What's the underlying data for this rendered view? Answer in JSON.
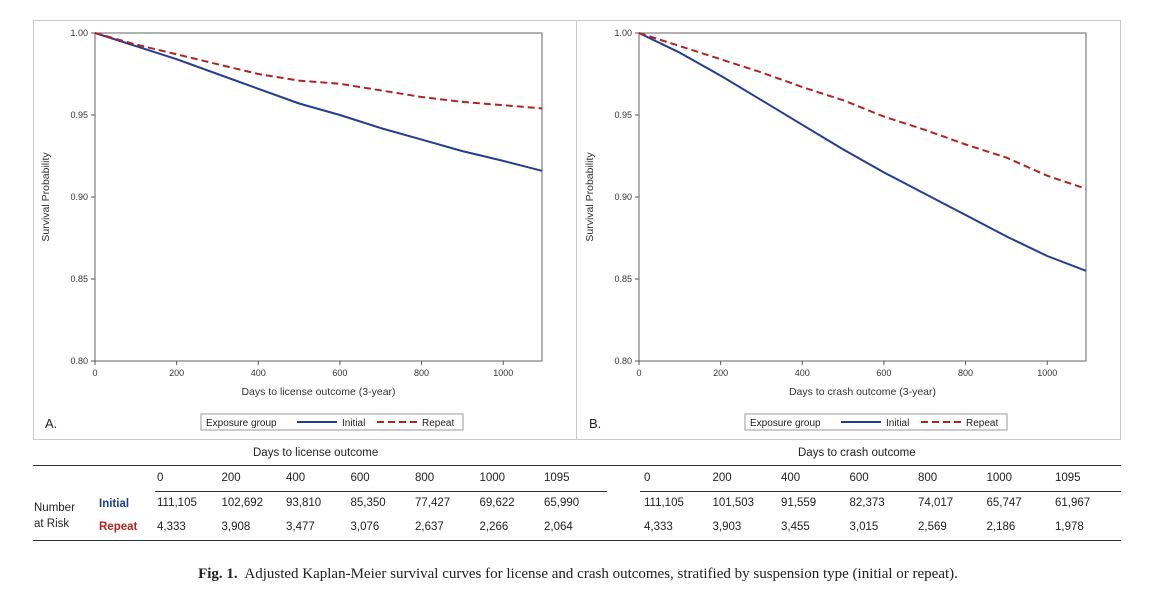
{
  "chart_data": [
    {
      "type": "line",
      "panel": "A.",
      "xlabel": "Days to license outcome (3-year)",
      "ylabel": "Survival Probability",
      "xlim": [
        0,
        1095
      ],
      "ylim": [
        0.8,
        1.0
      ],
      "x_ticks": [
        "0",
        "200",
        "400",
        "600",
        "800",
        "1000"
      ],
      "y_ticks": [
        "0.80",
        "0.85",
        "0.90",
        "0.95",
        "1.00"
      ],
      "legend_title": "Exposure group",
      "series": [
        {
          "name": "Initial",
          "style": "solid",
          "color": "#243c91",
          "x": [
            0,
            100,
            200,
            300,
            400,
            500,
            600,
            700,
            800,
            900,
            1000,
            1095
          ],
          "y": [
            1.0,
            0.992,
            0.984,
            0.975,
            0.966,
            0.957,
            0.95,
            0.942,
            0.935,
            0.928,
            0.922,
            0.916
          ]
        },
        {
          "name": "Repeat",
          "style": "dashed",
          "color": "#b22222",
          "x": [
            0,
            100,
            200,
            300,
            400,
            500,
            600,
            700,
            800,
            900,
            1000,
            1095
          ],
          "y": [
            1.0,
            0.993,
            0.987,
            0.981,
            0.975,
            0.971,
            0.969,
            0.965,
            0.961,
            0.958,
            0.956,
            0.954
          ]
        }
      ]
    },
    {
      "type": "line",
      "panel": "B.",
      "xlabel": "Days to crash outcome (3-year)",
      "ylabel": "Survival Probability",
      "xlim": [
        0,
        1095
      ],
      "ylim": [
        0.8,
        1.0
      ],
      "x_ticks": [
        "0",
        "200",
        "400",
        "600",
        "800",
        "1000"
      ],
      "y_ticks": [
        "0.80",
        "0.85",
        "0.90",
        "0.95",
        "1.00"
      ],
      "legend_title": "Exposure group",
      "series": [
        {
          "name": "Initial",
          "style": "solid",
          "color": "#243c91",
          "x": [
            0,
            100,
            200,
            300,
            400,
            500,
            600,
            700,
            800,
            900,
            1000,
            1095
          ],
          "y": [
            1.0,
            0.988,
            0.974,
            0.959,
            0.944,
            0.929,
            0.915,
            0.902,
            0.889,
            0.876,
            0.864,
            0.855
          ]
        },
        {
          "name": "Repeat",
          "style": "dashed",
          "color": "#b22222",
          "x": [
            0,
            100,
            200,
            300,
            400,
            500,
            600,
            700,
            800,
            900,
            1000,
            1095
          ],
          "y": [
            1.0,
            0.992,
            0.984,
            0.976,
            0.967,
            0.959,
            0.949,
            0.941,
            0.932,
            0.924,
            0.913,
            0.905
          ]
        }
      ]
    }
  ],
  "risk_table": {
    "row_title_1": "Number",
    "row_title_2": "at Risk",
    "initial_label": "Initial",
    "repeat_label": "Repeat",
    "license": {
      "title": "Days to license outcome",
      "days": [
        "0",
        "200",
        "400",
        "600",
        "800",
        "1000",
        "1095"
      ],
      "initial": [
        "111,105",
        "102,692",
        "93,810",
        "85,350",
        "77,427",
        "69,622",
        "65,990"
      ],
      "repeat": [
        "4,333",
        "3,908",
        "3,477",
        "3,076",
        "2,637",
        "2,266",
        "2,064"
      ]
    },
    "crash": {
      "title": "Days to crash outcome",
      "days": [
        "0",
        "200",
        "400",
        "600",
        "800",
        "1000",
        "1095"
      ],
      "initial": [
        "111,105",
        "101,503",
        "91,559",
        "82,373",
        "74,017",
        "65,747",
        "61,967"
      ],
      "repeat": [
        "4,333",
        "3,903",
        "3,455",
        "3,015",
        "2,569",
        "2,186",
        "1,978"
      ]
    }
  },
  "caption": {
    "label": "Fig. 1.",
    "text": "Adjusted Kaplan-Meier survival curves for license and crash outcomes, stratified by suspension type (initial or repeat)."
  }
}
